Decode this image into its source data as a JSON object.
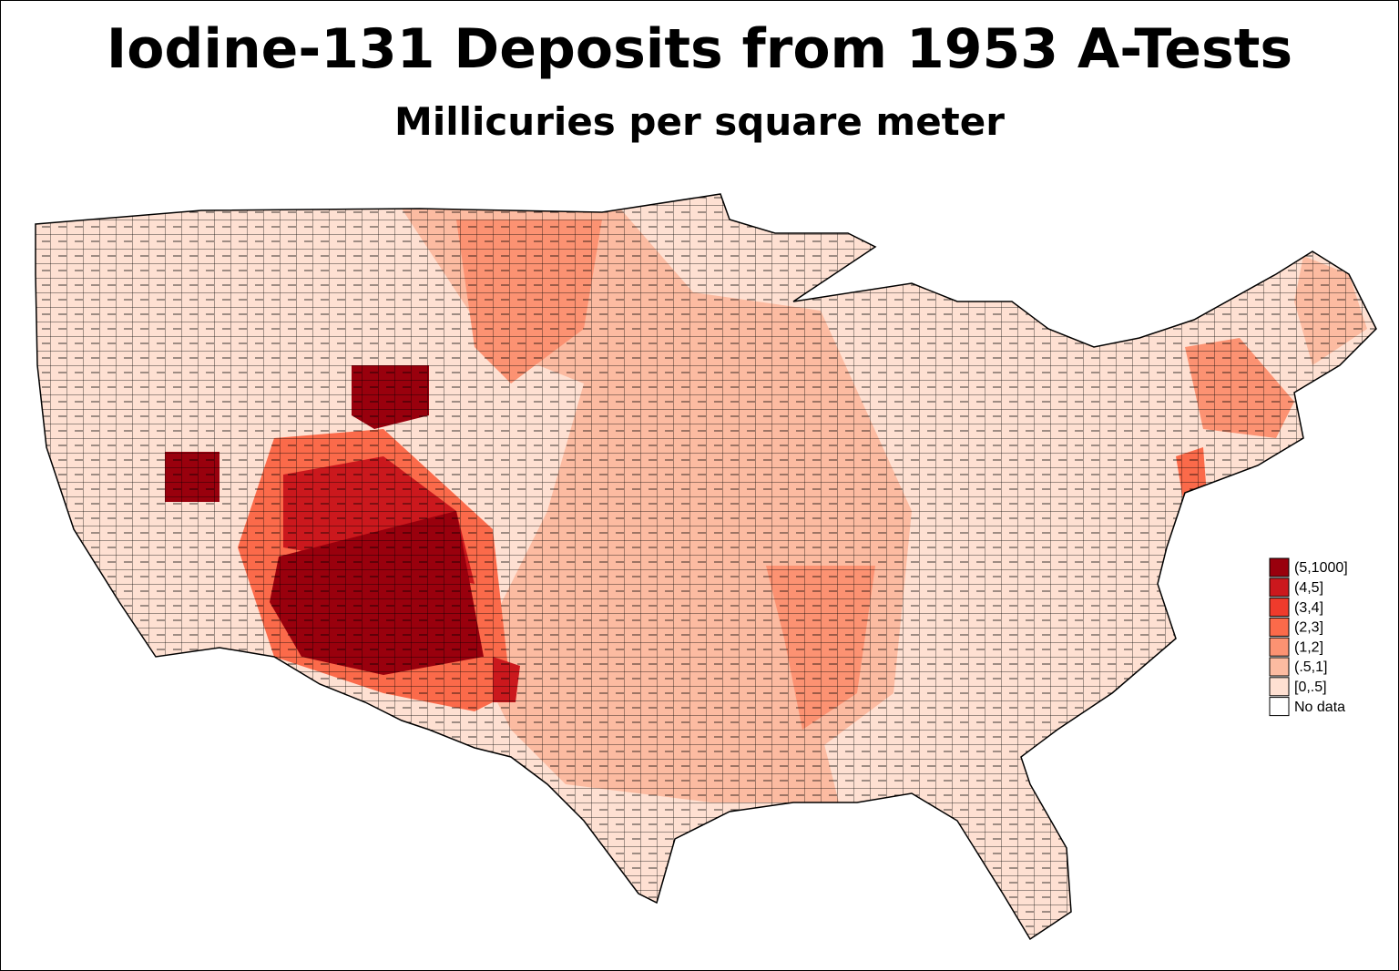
{
  "title": "Iodine-131 Deposits from 1953 A-Tests",
  "subtitle": "Millicuries per square meter",
  "legend": {
    "items": [
      {
        "label": "(5,1000]",
        "color": "#99000d"
      },
      {
        "label": "(4,5]",
        "color": "#cb181d"
      },
      {
        "label": "(3,4]",
        "color": "#ef3b2c"
      },
      {
        "label": "(2,3]",
        "color": "#fb6a4a"
      },
      {
        "label": "(1,2]",
        "color": "#fc9272"
      },
      {
        "label": "(.5,1]",
        "color": "#fcbba1"
      },
      {
        "label": "[0,.5]",
        "color": "#fee0d2"
      },
      {
        "label": "No data",
        "color": "#ffffff"
      }
    ]
  }
}
